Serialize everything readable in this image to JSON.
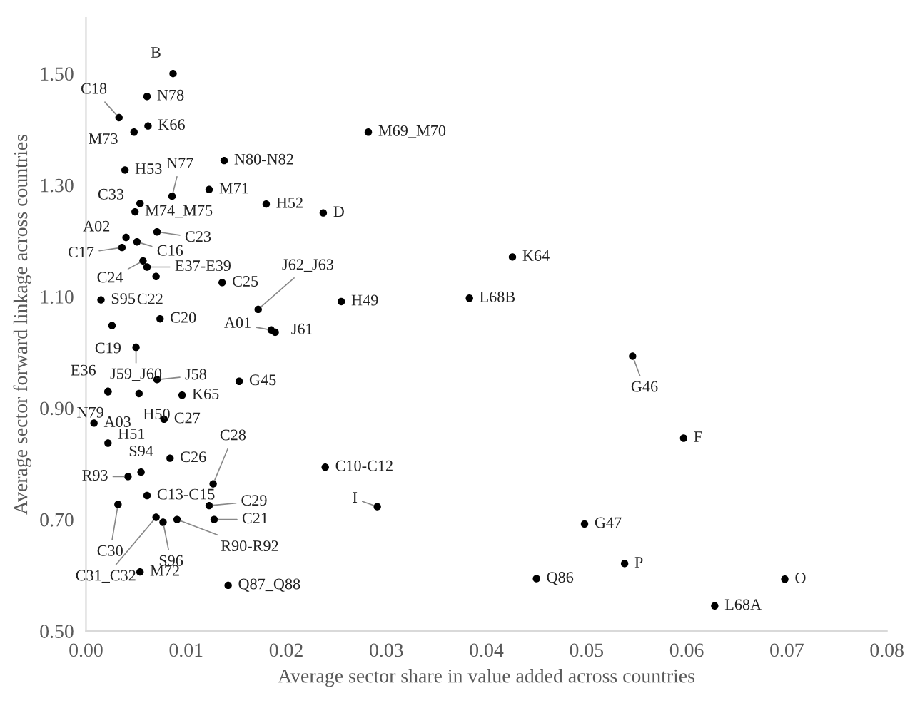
{
  "chart_data": {
    "type": "scatter",
    "xlabel": "Average sector share in value added across countries",
    "ylabel": "Average sector forward linkage across countries",
    "xlim": [
      0,
      0.08
    ],
    "ylim": [
      0.5,
      1.6
    ],
    "xticks": [
      {
        "value": 0,
        "label": "0.00"
      },
      {
        "value": 0.01,
        "label": "0.01"
      },
      {
        "value": 0.02,
        "label": "0.02"
      },
      {
        "value": 0.03,
        "label": "0.03"
      },
      {
        "value": 0.04,
        "label": "0.04"
      },
      {
        "value": 0.05,
        "label": "0.05"
      },
      {
        "value": 0.06,
        "label": "0.06"
      },
      {
        "value": 0.07,
        "label": "0.07"
      },
      {
        "value": 0.08,
        "label": "0.08"
      }
    ],
    "yticks": [
      {
        "value": 0.5,
        "label": "0.50"
      },
      {
        "value": 0.7,
        "label": "0.70"
      },
      {
        "value": 0.9,
        "label": "0.90"
      },
      {
        "value": 1.1,
        "label": "1.10"
      },
      {
        "value": 1.3,
        "label": "1.30"
      },
      {
        "value": 1.5,
        "label": "1.50"
      }
    ],
    "grid": false,
    "legend": false,
    "marker": "circle",
    "series": [
      {
        "color": "#000000",
        "x": [
          0.0087,
          0.0061,
          0.0033,
          0.0062,
          0.0048,
          0.0282,
          0.0039,
          0.0138,
          0.0086,
          0.0123,
          0.0054,
          0.0049,
          0.018,
          0.0237,
          0.004,
          0.0071,
          0.0051,
          0.0036,
          0.0057,
          0.0061,
          0.007,
          0.0136,
          0.0172,
          0.0255,
          0.0015,
          0.0074,
          0.0185,
          0.0189,
          0.0026,
          0.0426,
          0.0383,
          0.005,
          0.0022,
          0.0022,
          0.0053,
          0.0071,
          0.0153,
          0.0096,
          0.0008,
          0.0078,
          0.0022,
          0.0084,
          0.0055,
          0.0042,
          0.0127,
          0.0239,
          0.0061,
          0.0032,
          0.0123,
          0.0291,
          0.007,
          0.0077,
          0.0091,
          0.0128,
          0.0054,
          0.0142,
          0.0546,
          0.0597,
          0.0498,
          0.0538,
          0.045,
          0.0698,
          0.0628
        ],
        "values": [
          1.5,
          1.459,
          1.421,
          1.406,
          1.395,
          1.395,
          1.327,
          1.344,
          1.28,
          1.292,
          1.267,
          1.252,
          1.266,
          1.25,
          1.206,
          1.216,
          1.198,
          1.188,
          1.164,
          1.153,
          1.136,
          1.125,
          1.077,
          1.091,
          1.094,
          1.06,
          1.04,
          1.036,
          1.048,
          1.171,
          1.097,
          1.009,
          0.93,
          0.929,
          0.926,
          0.951,
          0.948,
          0.923,
          0.873,
          0.88,
          0.837,
          0.81,
          0.785,
          0.777,
          0.764,
          0.794,
          0.743,
          0.727,
          0.725,
          0.723,
          0.704,
          0.695,
          0.7,
          0.7,
          0.606,
          0.582,
          0.993,
          0.846,
          0.692,
          0.621,
          0.594,
          0.593,
          0.545
        ]
      }
    ],
    "annotations": [
      {
        "text": "B",
        "x": 0.0087,
        "y": 1.5
      },
      {
        "text": "N78",
        "x": 0.0061,
        "y": 1.459
      },
      {
        "text": "C18",
        "x": 0.0033,
        "y": 1.421
      },
      {
        "text": "K66",
        "x": 0.0062,
        "y": 1.406
      },
      {
        "text": "M73",
        "x": 0.0048,
        "y": 1.395
      },
      {
        "text": "M69_M70",
        "x": 0.0282,
        "y": 1.395
      },
      {
        "text": "H53",
        "x": 0.0039,
        "y": 1.327
      },
      {
        "text": "N80-N82",
        "x": 0.0138,
        "y": 1.344
      },
      {
        "text": "N77",
        "x": 0.0086,
        "y": 1.28
      },
      {
        "text": "M71",
        "x": 0.0123,
        "y": 1.292
      },
      {
        "text": "C33",
        "x": 0.0054,
        "y": 1.267
      },
      {
        "text": "M74_M75",
        "x": 0.0049,
        "y": 1.252
      },
      {
        "text": "H52",
        "x": 0.018,
        "y": 1.266
      },
      {
        "text": "D",
        "x": 0.0237,
        "y": 1.25
      },
      {
        "text": "A02",
        "x": 0.004,
        "y": 1.206
      },
      {
        "text": "C23",
        "x": 0.0071,
        "y": 1.216
      },
      {
        "text": "C16",
        "x": 0.0051,
        "y": 1.198
      },
      {
        "text": "C17",
        "x": 0.0036,
        "y": 1.188
      },
      {
        "text": "C24",
        "x": 0.0057,
        "y": 1.164
      },
      {
        "text": "E37-E39",
        "x": 0.0061,
        "y": 1.153
      },
      {
        "text": "C22",
        "x": 0.007,
        "y": 1.136
      },
      {
        "text": "C25",
        "x": 0.0136,
        "y": 1.125
      },
      {
        "text": "J62_J63",
        "x": 0.0172,
        "y": 1.077
      },
      {
        "text": "H49",
        "x": 0.0255,
        "y": 1.091
      },
      {
        "text": "S95",
        "x": 0.0015,
        "y": 1.094
      },
      {
        "text": "C20",
        "x": 0.0074,
        "y": 1.06
      },
      {
        "text": "A01",
        "x": 0.0185,
        "y": 1.04
      },
      {
        "text": "J61",
        "x": 0.0189,
        "y": 1.036
      },
      {
        "text": "C19",
        "x": 0.0026,
        "y": 1.048
      },
      {
        "text": "K64",
        "x": 0.0426,
        "y": 1.171
      },
      {
        "text": "L68B",
        "x": 0.0383,
        "y": 1.097
      },
      {
        "text": "J59_J60",
        "x": 0.005,
        "y": 1.009
      },
      {
        "text": "E36",
        "x": 0.0022,
        "y": 0.93
      },
      {
        "text": "N79",
        "x": 0.0022,
        "y": 0.929
      },
      {
        "text": "H50",
        "x": 0.0053,
        "y": 0.926
      },
      {
        "text": "J58",
        "x": 0.0071,
        "y": 0.951
      },
      {
        "text": "G45",
        "x": 0.0153,
        "y": 0.948
      },
      {
        "text": "K65",
        "x": 0.0096,
        "y": 0.923
      },
      {
        "text": "A03",
        "x": 0.0008,
        "y": 0.873
      },
      {
        "text": "C27",
        "x": 0.0078,
        "y": 0.88
      },
      {
        "text": "H51",
        "x": 0.0022,
        "y": 0.837
      },
      {
        "text": "C26",
        "x": 0.0084,
        "y": 0.81
      },
      {
        "text": "S94",
        "x": 0.0055,
        "y": 0.785
      },
      {
        "text": "R93",
        "x": 0.0042,
        "y": 0.777
      },
      {
        "text": "C28",
        "x": 0.0127,
        "y": 0.764
      },
      {
        "text": "C10-C12",
        "x": 0.0239,
        "y": 0.794
      },
      {
        "text": "C13-C15",
        "x": 0.0061,
        "y": 0.743
      },
      {
        "text": "C30",
        "x": 0.0032,
        "y": 0.727
      },
      {
        "text": "C29",
        "x": 0.0123,
        "y": 0.725
      },
      {
        "text": "I",
        "x": 0.0291,
        "y": 0.723
      },
      {
        "text": "C31_C32",
        "x": 0.007,
        "y": 0.704
      },
      {
        "text": "S96",
        "x": 0.0077,
        "y": 0.695
      },
      {
        "text": "R90-R92",
        "x": 0.0091,
        "y": 0.7
      },
      {
        "text": "C21",
        "x": 0.0128,
        "y": 0.7
      },
      {
        "text": "M72",
        "x": 0.0054,
        "y": 0.606
      },
      {
        "text": "Q87_Q88",
        "x": 0.0142,
        "y": 0.582
      },
      {
        "text": "G46",
        "x": 0.0546,
        "y": 0.993
      },
      {
        "text": "F",
        "x": 0.0597,
        "y": 0.846
      },
      {
        "text": "G47",
        "x": 0.0498,
        "y": 0.692
      },
      {
        "text": "P",
        "x": 0.0538,
        "y": 0.621
      },
      {
        "text": "Q86",
        "x": 0.045,
        "y": 0.594
      },
      {
        "text": "O",
        "x": 0.0698,
        "y": 0.593
      },
      {
        "text": "L68A",
        "x": 0.0628,
        "y": 0.545
      }
    ]
  }
}
